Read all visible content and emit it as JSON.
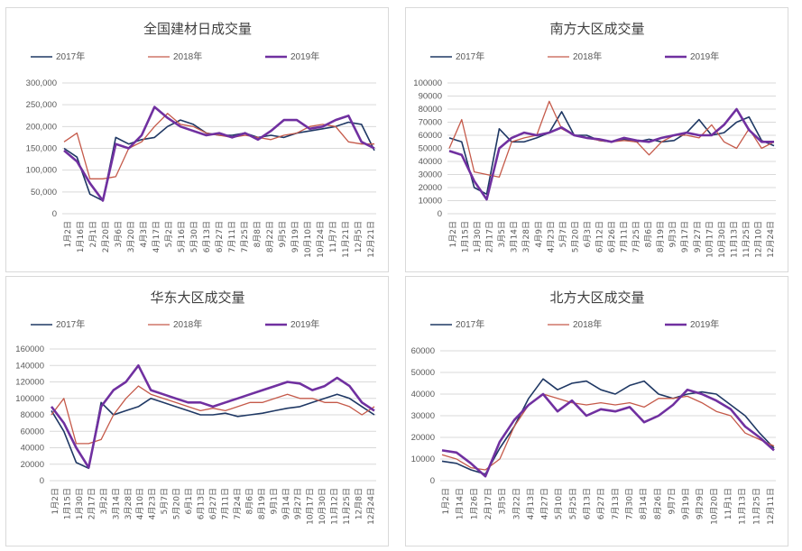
{
  "colors": {
    "2017": "#1f3864",
    "2018": "#c55a4a",
    "2019": "#7030a0"
  },
  "chart_data": [
    {
      "type": "line",
      "title": "全国建材日成交量",
      "ylim": [
        0,
        300000
      ],
      "yticks": [
        "0",
        "50,000",
        "100,000",
        "150,000",
        "200,000",
        "250,000",
        "300,000"
      ],
      "ytick_values": [
        0,
        50000,
        100000,
        150000,
        200000,
        250000,
        300000
      ],
      "xticks": [
        "1月2日",
        "1月16日",
        "2月1日",
        "2月20日",
        "3月6日",
        "3月20日",
        "4月3日",
        "4月17日",
        "5月2日",
        "5月16日",
        "5月30日",
        "6月13日",
        "6月27日",
        "7月11日",
        "7月25日",
        "8月8日",
        "8月22日",
        "9月5日",
        "9月19日",
        "10月10日",
        "10月24日",
        "11月7日",
        "11月21日",
        "12月5日",
        "12月21日"
      ],
      "grid": true,
      "legend": "top",
      "series": [
        {
          "name": "2017年",
          "values": [
            150000,
            130000,
            45000,
            30000,
            175000,
            160000,
            170000,
            175000,
            200000,
            215000,
            205000,
            185000,
            180000,
            180000,
            185000,
            175000,
            180000,
            175000,
            185000,
            190000,
            195000,
            200000,
            210000,
            205000,
            145000
          ]
        },
        {
          "name": "2018年",
          "values": [
            165000,
            185000,
            80000,
            80000,
            85000,
            150000,
            165000,
            200000,
            230000,
            205000,
            200000,
            185000,
            180000,
            175000,
            180000,
            175000,
            170000,
            180000,
            185000,
            200000,
            205000,
            200000,
            165000,
            160000,
            160000
          ]
        },
        {
          "name": "2019年",
          "values": [
            145000,
            120000,
            70000,
            30000,
            160000,
            150000,
            180000,
            245000,
            220000,
            200000,
            190000,
            180000,
            185000,
            175000,
            185000,
            170000,
            190000,
            215000,
            215000,
            195000,
            200000,
            215000,
            225000,
            165000,
            150000
          ]
        }
      ]
    },
    {
      "type": "line",
      "title": "南方大区成交量",
      "ylim": [
        0,
        100000
      ],
      "yticks": [
        "0",
        "10000",
        "20000",
        "30000",
        "40000",
        "50000",
        "60000",
        "70000",
        "80000",
        "90000",
        "100000"
      ],
      "ytick_values": [
        0,
        10000,
        20000,
        30000,
        40000,
        50000,
        60000,
        70000,
        80000,
        90000,
        100000
      ],
      "xticks": [
        "1月2日",
        "1月15日",
        "1月30日",
        "2月17日",
        "3月5日",
        "3月14日",
        "3月28日",
        "4月9日",
        "4月23日",
        "5月7日",
        "5月20日",
        "6月3日",
        "6月12日",
        "6月26日",
        "7月11日",
        "7月25日",
        "8月6日",
        "8月19日",
        "9月3日",
        "9月17日",
        "9月27日",
        "10月17日",
        "10月30日",
        "11月13日",
        "11月25日",
        "12月10日",
        "12月24日"
      ],
      "grid": true,
      "legend": "top",
      "series": [
        {
          "name": "2017年",
          "values": [
            58000,
            55000,
            20000,
            15000,
            65000,
            55000,
            55000,
            58000,
            62000,
            78000,
            60000,
            60000,
            56000,
            55000,
            57000,
            55000,
            57000,
            55000,
            56000,
            62000,
            72000,
            60000,
            62000,
            70000,
            74000,
            56000,
            52000
          ]
        },
        {
          "name": "2018年",
          "values": [
            50000,
            72000,
            32000,
            30000,
            28000,
            55000,
            58000,
            60000,
            86000,
            65000,
            60000,
            58000,
            56000,
            55000,
            56000,
            55000,
            45000,
            55000,
            60000,
            60000,
            58000,
            68000,
            55000,
            50000,
            65000,
            50000,
            55000
          ]
        },
        {
          "name": "2019年",
          "values": [
            48000,
            45000,
            25000,
            11000,
            50000,
            58000,
            62000,
            60000,
            62000,
            66000,
            60000,
            58000,
            57000,
            55000,
            58000,
            56000,
            55000,
            58000,
            60000,
            62000,
            60000,
            60000,
            68000,
            80000,
            64000,
            55000,
            55000
          ]
        }
      ]
    },
    {
      "type": "line",
      "title": "华东大区成交量",
      "ylim": [
        0,
        160000
      ],
      "yticks": [
        "0",
        "20000",
        "40000",
        "60000",
        "80000",
        "100000",
        "120000",
        "140000",
        "160000"
      ],
      "ytick_values": [
        0,
        20000,
        40000,
        60000,
        80000,
        100000,
        120000,
        140000,
        160000
      ],
      "xticks": [
        "1月2日",
        "1月15日",
        "1月30日",
        "2月17日",
        "3月2日",
        "3月14日",
        "3月28日",
        "4月10日",
        "4月23日",
        "5月7日",
        "5月20日",
        "6月1日",
        "6月13日",
        "6月27日",
        "7月11日",
        "7月24日",
        "8月6日",
        "8月19日",
        "9月1日",
        "9月14日",
        "9月27日",
        "10月17日",
        "10月30日",
        "11月12日",
        "11月25日",
        "12月8日",
        "12月24日"
      ],
      "grid": true,
      "legend": "top",
      "series": [
        {
          "name": "2017年",
          "values": [
            85000,
            60000,
            22000,
            15000,
            95000,
            80000,
            85000,
            90000,
            100000,
            95000,
            90000,
            85000,
            80000,
            80000,
            82000,
            78000,
            80000,
            82000,
            85000,
            88000,
            90000,
            95000,
            100000,
            105000,
            100000,
            90000,
            80000
          ]
        },
        {
          "name": "2018年",
          "values": [
            80000,
            100000,
            45000,
            45000,
            50000,
            80000,
            100000,
            115000,
            105000,
            100000,
            95000,
            90000,
            85000,
            88000,
            85000,
            90000,
            95000,
            95000,
            100000,
            105000,
            100000,
            100000,
            95000,
            95000,
            90000,
            80000,
            90000
          ]
        },
        {
          "name": "2019年",
          "values": [
            90000,
            70000,
            40000,
            16000,
            90000,
            110000,
            120000,
            140000,
            110000,
            105000,
            100000,
            95000,
            95000,
            90000,
            95000,
            100000,
            105000,
            110000,
            115000,
            120000,
            118000,
            110000,
            115000,
            125000,
            115000,
            95000,
            85000
          ]
        }
      ]
    },
    {
      "type": "line",
      "title": "北方大区成交量",
      "ylim": [
        0,
        60000
      ],
      "yticks": [
        "0",
        "10000",
        "20000",
        "30000",
        "40000",
        "50000",
        "60000"
      ],
      "ytick_values": [
        0,
        10000,
        20000,
        30000,
        40000,
        50000,
        60000
      ],
      "xticks": [
        "1月2日",
        "1月14日",
        "1月26日",
        "2月17日",
        "3月5日",
        "3月22日",
        "4月13日",
        "4月27日",
        "5月10日",
        "5月25日",
        "6月13日",
        "6月27日",
        "7月13日",
        "7月30日",
        "8月14日",
        "8月26日",
        "9月7日",
        "9月19日",
        "9月29日",
        "10月20日",
        "11月1日",
        "11月13日",
        "11月25日",
        "12月11日"
      ],
      "grid": true,
      "legend": "top",
      "series": [
        {
          "name": "2017年",
          "values": [
            9000,
            8000,
            5000,
            3000,
            15000,
            25000,
            38000,
            47000,
            42000,
            45000,
            46000,
            42000,
            40000,
            44000,
            46000,
            40000,
            38000,
            40000,
            41000,
            40000,
            35000,
            30000,
            22000,
            15000
          ]
        },
        {
          "name": "2018年",
          "values": [
            12000,
            10000,
            6000,
            5000,
            10000,
            25000,
            35000,
            40000,
            38000,
            36000,
            35000,
            36000,
            35000,
            36000,
            34000,
            38000,
            38000,
            39000,
            36000,
            32000,
            30000,
            22000,
            19000,
            16000
          ]
        },
        {
          "name": "2019年",
          "values": [
            14000,
            13000,
            8000,
            2000,
            18000,
            28000,
            35000,
            40000,
            32000,
            37000,
            30000,
            33000,
            32000,
            34000,
            27000,
            30000,
            35000,
            42000,
            40000,
            37000,
            33000,
            25000,
            20000,
            14000
          ]
        }
      ]
    }
  ]
}
